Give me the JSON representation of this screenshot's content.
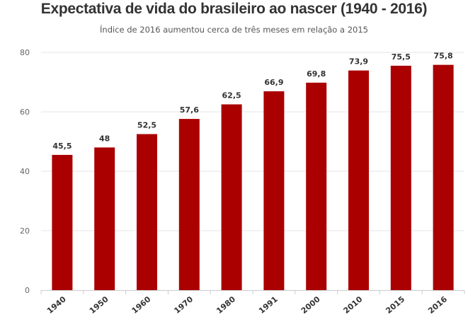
{
  "chart_data": {
    "type": "bar",
    "title": "Expectativa de vida do brasileiro ao nascer (1940 - 2016)",
    "subtitle": "Índice de 2016 aumentou cerca de três meses em relação a 2015",
    "categories": [
      "1940",
      "1950",
      "1960",
      "1970",
      "1980",
      "1991",
      "2000",
      "2010",
      "2015",
      "2016"
    ],
    "values": [
      45.5,
      48,
      52.5,
      57.6,
      62.5,
      66.9,
      69.8,
      73.9,
      75.5,
      75.8
    ],
    "data_labels": [
      "45,5",
      "48",
      "52,5",
      "57,6",
      "62,5",
      "66,9",
      "69,8",
      "73,9",
      "75,5",
      "75,8"
    ],
    "yticks": [
      "0",
      "20",
      "40",
      "60",
      "80"
    ],
    "ylim": [
      0,
      80
    ],
    "xlabel": "",
    "ylabel": "",
    "grid": true,
    "bar_color": "#aa0000",
    "grid_color": "#e6e6e6"
  }
}
